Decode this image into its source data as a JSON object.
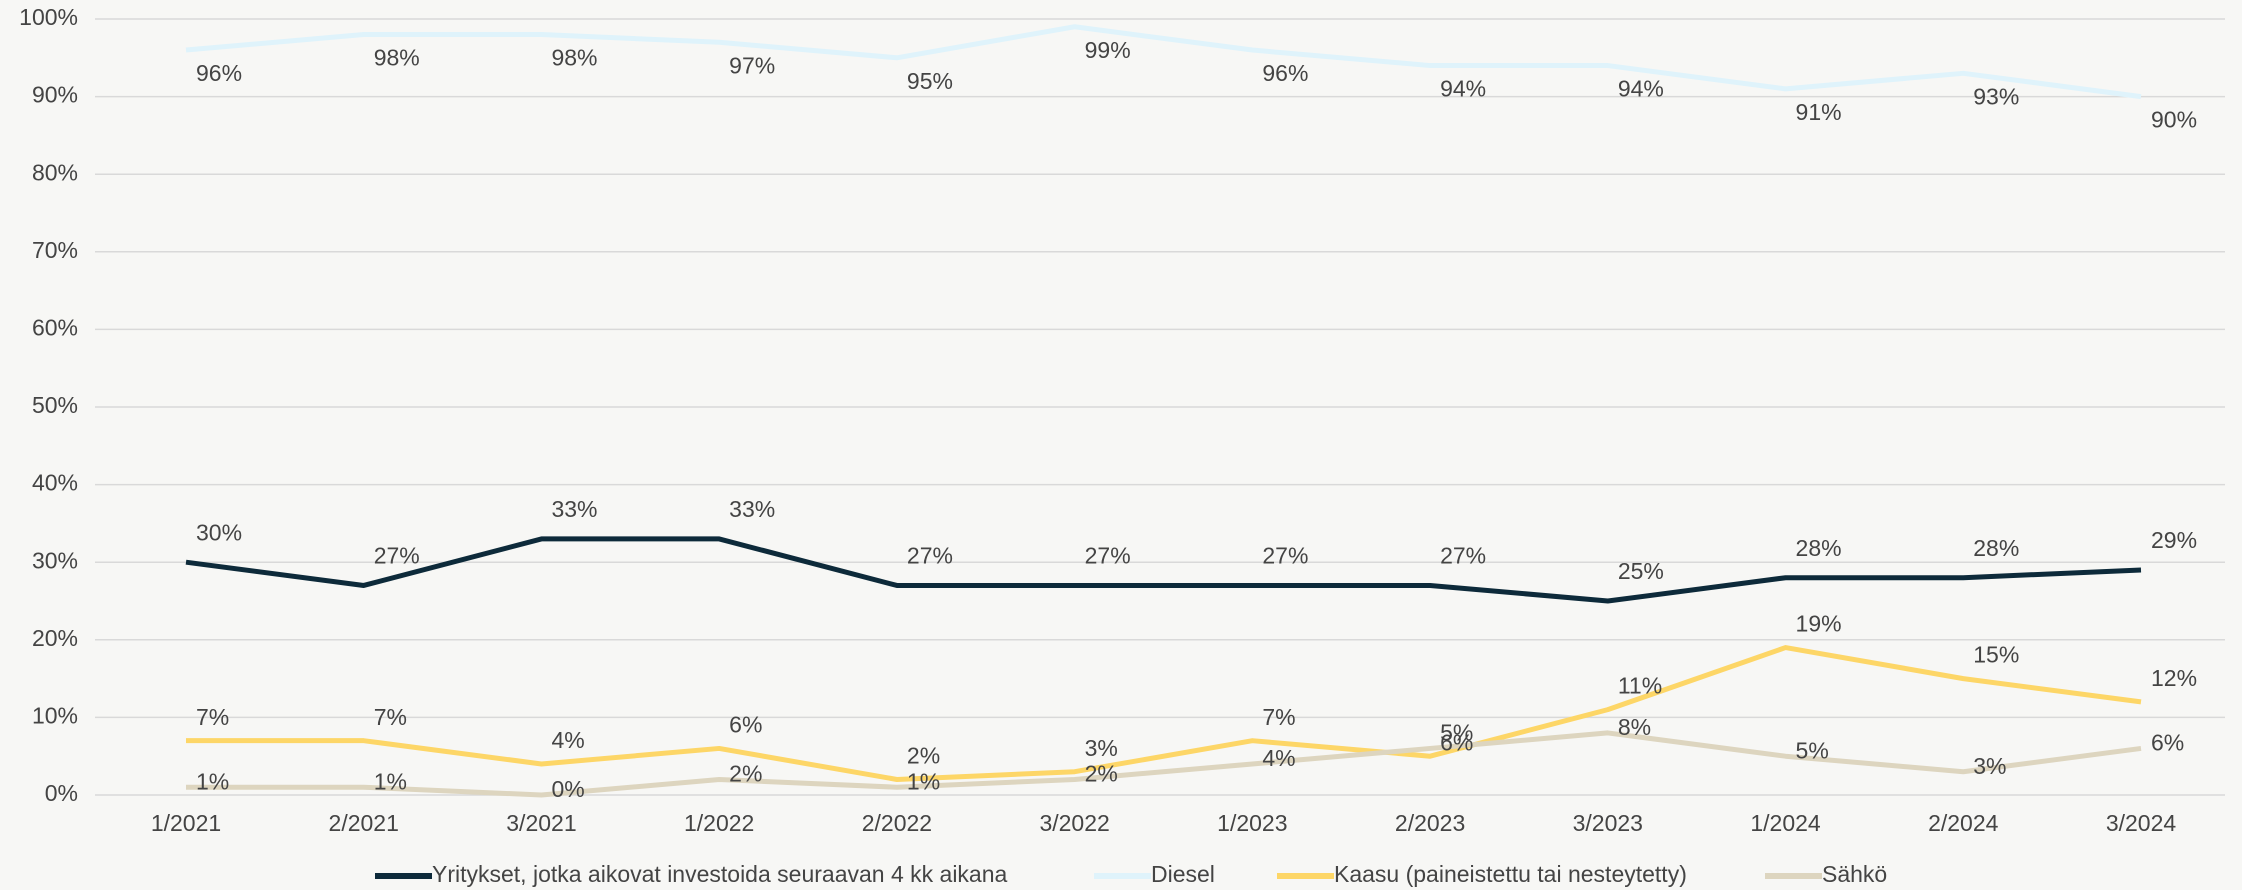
{
  "chart_data": {
    "type": "line",
    "categories": [
      "1/2021",
      "2/2021",
      "3/2021",
      "1/2022",
      "2/2022",
      "3/2022",
      "1/2023",
      "2/2023",
      "3/2023",
      "1/2024",
      "2/2024",
      "3/2024"
    ],
    "series": [
      {
        "name": "Yritykset, jotka aikovat investoida seuraavan 4 kk aikana",
        "color": "#0d2a3a",
        "values": [
          30,
          27,
          33,
          33,
          27,
          27,
          27,
          27,
          25,
          28,
          28,
          29
        ],
        "value_labels": [
          "30%",
          "27%",
          "33%",
          "33%",
          "27%",
          "27%",
          "27%",
          "27%",
          "25%",
          "28%",
          "28%",
          "29%"
        ]
      },
      {
        "name": "Diesel",
        "color": "#dff3fb",
        "values": [
          96,
          98,
          98,
          97,
          95,
          99,
          96,
          94,
          94,
          91,
          93,
          90
        ],
        "value_labels": [
          "96%",
          "98%",
          "98%",
          "97%",
          "95%",
          "99%",
          "96%",
          "94%",
          "94%",
          "91%",
          "93%",
          "90%"
        ]
      },
      {
        "name": "Kaasu (paineistettu tai nesteytetty)",
        "color": "#fdd667",
        "values": [
          7,
          7,
          4,
          6,
          2,
          3,
          7,
          5,
          11,
          19,
          15,
          12
        ],
        "value_labels": [
          "7%",
          "7%",
          "4%",
          "6%",
          "2%",
          "3%",
          "7%",
          "5%",
          "11%",
          "19%",
          "15%",
          "12%"
        ]
      },
      {
        "name": "Sähkö",
        "color": "#ddd5bf",
        "values": [
          1,
          1,
          0,
          2,
          1,
          2,
          4,
          6,
          8,
          5,
          3,
          6
        ],
        "value_labels": [
          "1%",
          "1%",
          "0%",
          "2%",
          "1%",
          "2%",
          "4%",
          "6%",
          "8%",
          "5%",
          "3%",
          "6%"
        ]
      }
    ],
    "ylim": [
      0,
      100
    ],
    "yticks": [
      {
        "value": 0,
        "label": "0%"
      },
      {
        "value": 10,
        "label": "10%"
      },
      {
        "value": 20,
        "label": "20%"
      },
      {
        "value": 30,
        "label": "30%"
      },
      {
        "value": 40,
        "label": "40%"
      },
      {
        "value": 50,
        "label": "50%"
      },
      {
        "value": 60,
        "label": "60%"
      },
      {
        "value": 70,
        "label": "70%"
      },
      {
        "value": 80,
        "label": "80%"
      },
      {
        "value": 90,
        "label": "90%"
      },
      {
        "value": 100,
        "label": "100%"
      }
    ],
    "grid": true,
    "legend": "bottom"
  }
}
